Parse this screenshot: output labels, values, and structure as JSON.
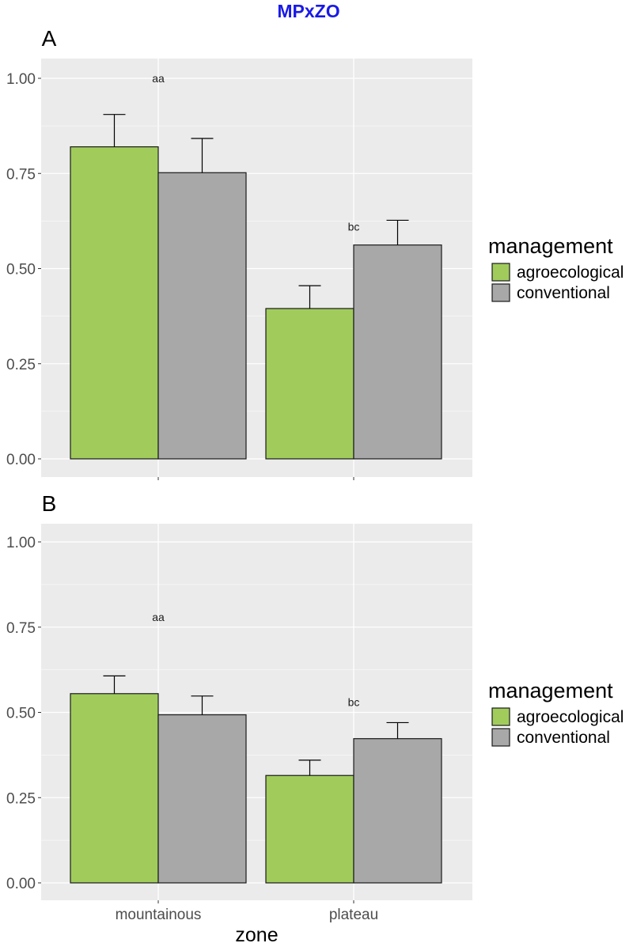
{
  "title": "MPxZO",
  "colors": {
    "title": "#1a1ae6",
    "agroecological": "#a1cc5c",
    "conventional": "#a8a8a8",
    "panel_bg": "#ebebeb",
    "grid": "#ffffff"
  },
  "chart_data": [
    {
      "type": "bar",
      "panel_label": "A",
      "categories": [
        "mountainous",
        "plateau"
      ],
      "series": [
        {
          "name": "agroecological",
          "values": [
            0.82,
            0.395
          ],
          "errors": [
            0.085,
            0.06
          ]
        },
        {
          "name": "conventional",
          "values": [
            0.752,
            0.562
          ],
          "errors": [
            0.09,
            0.065
          ]
        }
      ],
      "annotations": [
        {
          "category": "mountainous",
          "text": "aa",
          "y": 1.0
        },
        {
          "category": "plateau",
          "text": "bc",
          "y": 0.61
        }
      ],
      "ylim": [
        0,
        1
      ],
      "yticks": [
        "0.00",
        "0.25",
        "0.50",
        "0.75",
        "1.00"
      ],
      "xlabel": "",
      "ylabel": "",
      "legend": {
        "title": "management",
        "items": [
          "agroecological",
          "conventional"
        ],
        "position": "right"
      }
    },
    {
      "type": "bar",
      "panel_label": "B",
      "categories": [
        "mountainous",
        "plateau"
      ],
      "series": [
        {
          "name": "agroecological",
          "values": [
            0.555,
            0.315
          ],
          "errors": [
            0.052,
            0.045
          ]
        },
        {
          "name": "conventional",
          "values": [
            0.493,
            0.423
          ],
          "errors": [
            0.055,
            0.047
          ]
        }
      ],
      "annotations": [
        {
          "category": "mountainous",
          "text": "aa",
          "y": 0.78
        },
        {
          "category": "plateau",
          "text": "bc",
          "y": 0.53
        }
      ],
      "ylim": [
        0,
        1
      ],
      "yticks": [
        "0.00",
        "0.25",
        "0.50",
        "0.75",
        "1.00"
      ],
      "xlabel": "zone",
      "ylabel": "",
      "legend": {
        "title": "management",
        "items": [
          "agroecological",
          "conventional"
        ],
        "position": "right"
      }
    }
  ]
}
